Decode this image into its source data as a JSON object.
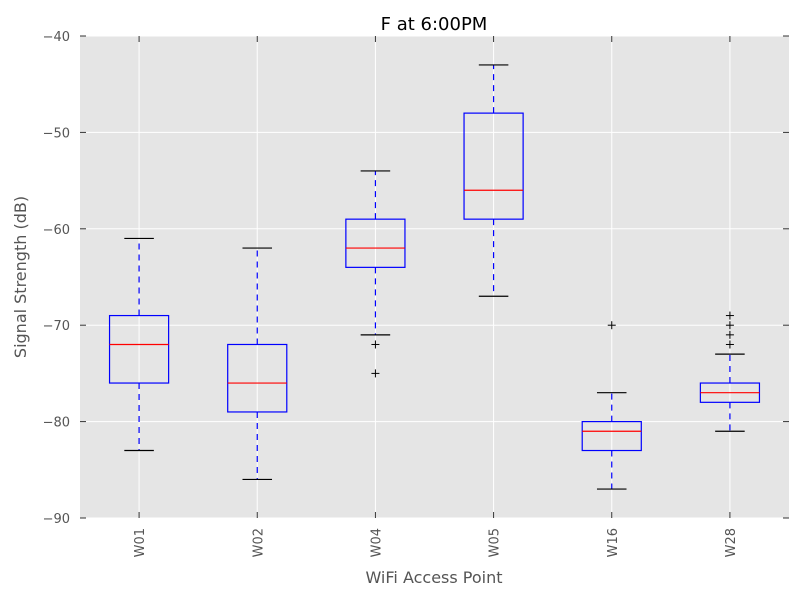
{
  "chart_data": {
    "type": "box",
    "title": "F at 6:00PM",
    "xlabel": "WiFi Access Point",
    "ylabel": "Signal Strength (dB)",
    "ylim": [
      -90,
      -40
    ],
    "yticks": [
      -90,
      -80,
      -70,
      -60,
      -50,
      -40
    ],
    "ytick_labels": [
      "−90",
      "−80",
      "−70",
      "−60",
      "−50",
      "−40"
    ],
    "grid": true,
    "categories": [
      "W01",
      "W02",
      "W04",
      "W05",
      "W16",
      "W28"
    ],
    "boxes": [
      {
        "label": "W01",
        "whisker_low": -83,
        "q1": -76,
        "median": -72,
        "q3": -69,
        "whisker_high": -61,
        "outliers": []
      },
      {
        "label": "W02",
        "whisker_low": -86,
        "q1": -79,
        "median": -76,
        "q3": -72,
        "whisker_high": -62,
        "outliers": []
      },
      {
        "label": "W04",
        "whisker_low": -71,
        "q1": -64,
        "median": -62,
        "q3": -59,
        "whisker_high": -54,
        "outliers": [
          -72,
          -75
        ]
      },
      {
        "label": "W05",
        "whisker_low": -67,
        "q1": -59,
        "median": -56,
        "q3": -48,
        "whisker_high": -43,
        "outliers": []
      },
      {
        "label": "W16",
        "whisker_low": -87,
        "q1": -83,
        "median": -81,
        "q3": -80,
        "whisker_high": -77,
        "outliers": [
          -70
        ]
      },
      {
        "label": "W28",
        "whisker_low": -81,
        "q1": -78,
        "median": -77,
        "q3": -76,
        "whisker_high": -73,
        "outliers": [
          -72,
          -71,
          -70,
          -69
        ]
      }
    ],
    "colors": {
      "background": "#e5e5e5",
      "grid": "#ffffff",
      "box": "#0000ff",
      "median": "#ff0000",
      "cap": "#000000",
      "outlier": "#000000"
    }
  }
}
